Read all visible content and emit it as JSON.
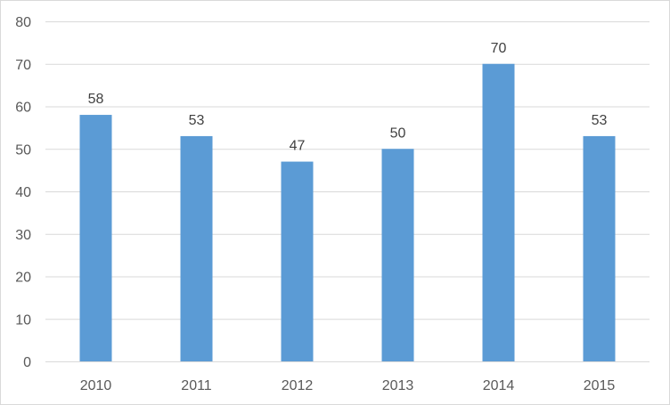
{
  "chart_data": {
    "type": "bar",
    "title": "",
    "xlabel": "",
    "ylabel": "",
    "categories": [
      "2010",
      "2011",
      "2012",
      "2013",
      "2014",
      "2015"
    ],
    "values": [
      58,
      53,
      47,
      50,
      70,
      53
    ],
    "ylim": [
      0,
      80
    ],
    "yticks": [
      0,
      10,
      20,
      30,
      40,
      50,
      60,
      70,
      80
    ],
    "grid": true,
    "legend": "none",
    "data_labels": true,
    "colors": {
      "bar": "#5b9bd5",
      "gridline": "#d9d9d9",
      "text": "#595959"
    }
  }
}
